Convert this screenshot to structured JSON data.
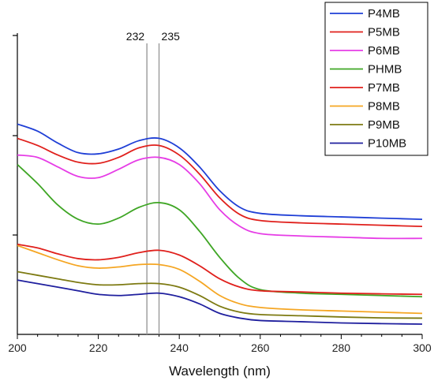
{
  "chart_data": {
    "type": "line",
    "title": "",
    "xlabel": "Wavelength (nm)",
    "ylabel": "",
    "xlim": [
      200,
      300
    ],
    "ylim": [
      0,
      1
    ],
    "x_ticks": [
      200,
      220,
      240,
      260,
      280,
      300
    ],
    "grid": false,
    "legend_position": "top-right",
    "annotations": [
      {
        "x": 232,
        "label": "232"
      },
      {
        "x": 235,
        "label": "235"
      }
    ],
    "series": [
      {
        "name": "P4MB",
        "color": "#1f3fd6",
        "points": [
          [
            200,
            0.85
          ],
          [
            205,
            0.82
          ],
          [
            210,
            0.77
          ],
          [
            215,
            0.73
          ],
          [
            220,
            0.725
          ],
          [
            225,
            0.745
          ],
          [
            230,
            0.78
          ],
          [
            235,
            0.79
          ],
          [
            240,
            0.75
          ],
          [
            245,
            0.67
          ],
          [
            250,
            0.57
          ],
          [
            255,
            0.5
          ],
          [
            260,
            0.475
          ],
          [
            270,
            0.465
          ],
          [
            280,
            0.46
          ],
          [
            290,
            0.455
          ],
          [
            300,
            0.45
          ]
        ]
      },
      {
        "name": "P5MB",
        "color": "#e0201c",
        "points": [
          [
            200,
            0.79
          ],
          [
            205,
            0.76
          ],
          [
            210,
            0.72
          ],
          [
            215,
            0.69
          ],
          [
            220,
            0.685
          ],
          [
            225,
            0.71
          ],
          [
            230,
            0.75
          ],
          [
            235,
            0.76
          ],
          [
            240,
            0.72
          ],
          [
            245,
            0.64
          ],
          [
            250,
            0.54
          ],
          [
            255,
            0.47
          ],
          [
            260,
            0.445
          ],
          [
            270,
            0.435
          ],
          [
            280,
            0.43
          ],
          [
            290,
            0.425
          ],
          [
            300,
            0.42
          ]
        ]
      },
      {
        "name": "P6MB",
        "color": "#e63de6",
        "points": [
          [
            200,
            0.72
          ],
          [
            205,
            0.71
          ],
          [
            210,
            0.67
          ],
          [
            215,
            0.63
          ],
          [
            220,
            0.625
          ],
          [
            225,
            0.66
          ],
          [
            230,
            0.7
          ],
          [
            235,
            0.71
          ],
          [
            240,
            0.68
          ],
          [
            245,
            0.6
          ],
          [
            250,
            0.49
          ],
          [
            255,
            0.42
          ],
          [
            260,
            0.39
          ],
          [
            270,
            0.38
          ],
          [
            280,
            0.375
          ],
          [
            290,
            0.37
          ],
          [
            300,
            0.37
          ]
        ]
      },
      {
        "name": "PHMB",
        "color": "#3fa625",
        "points": [
          [
            200,
            0.68
          ],
          [
            205,
            0.6
          ],
          [
            210,
            0.51
          ],
          [
            215,
            0.45
          ],
          [
            220,
            0.43
          ],
          [
            225,
            0.455
          ],
          [
            230,
            0.5
          ],
          [
            235,
            0.52
          ],
          [
            240,
            0.49
          ],
          [
            245,
            0.4
          ],
          [
            250,
            0.29
          ],
          [
            255,
            0.2
          ],
          [
            260,
            0.155
          ],
          [
            270,
            0.14
          ],
          [
            280,
            0.135
          ],
          [
            290,
            0.13
          ],
          [
            300,
            0.125
          ]
        ]
      },
      {
        "name": "P7MB",
        "color": "#e0201c",
        "points": [
          [
            200,
            0.345
          ],
          [
            205,
            0.33
          ],
          [
            210,
            0.305
          ],
          [
            215,
            0.285
          ],
          [
            220,
            0.28
          ],
          [
            225,
            0.29
          ],
          [
            230,
            0.31
          ],
          [
            235,
            0.32
          ],
          [
            240,
            0.3
          ],
          [
            245,
            0.255
          ],
          [
            250,
            0.2
          ],
          [
            255,
            0.165
          ],
          [
            260,
            0.15
          ],
          [
            270,
            0.145
          ],
          [
            280,
            0.14
          ],
          [
            290,
            0.137
          ],
          [
            300,
            0.135
          ]
        ]
      },
      {
        "name": "P8MB",
        "color": "#f5a623",
        "points": [
          [
            200,
            0.34
          ],
          [
            205,
            0.31
          ],
          [
            210,
            0.28
          ],
          [
            215,
            0.255
          ],
          [
            220,
            0.245
          ],
          [
            225,
            0.25
          ],
          [
            230,
            0.26
          ],
          [
            235,
            0.26
          ],
          [
            240,
            0.24
          ],
          [
            245,
            0.19
          ],
          [
            250,
            0.13
          ],
          [
            255,
            0.095
          ],
          [
            260,
            0.08
          ],
          [
            270,
            0.07
          ],
          [
            280,
            0.065
          ],
          [
            290,
            0.06
          ],
          [
            300,
            0.055
          ]
        ]
      },
      {
        "name": "P9MB",
        "color": "#7d7a12",
        "points": [
          [
            200,
            0.23
          ],
          [
            205,
            0.215
          ],
          [
            210,
            0.2
          ],
          [
            215,
            0.185
          ],
          [
            220,
            0.175
          ],
          [
            225,
            0.175
          ],
          [
            230,
            0.18
          ],
          [
            235,
            0.18
          ],
          [
            240,
            0.165
          ],
          [
            245,
            0.13
          ],
          [
            250,
            0.085
          ],
          [
            255,
            0.06
          ],
          [
            260,
            0.05
          ],
          [
            270,
            0.045
          ],
          [
            280,
            0.04
          ],
          [
            290,
            0.036
          ],
          [
            300,
            0.035
          ]
        ]
      },
      {
        "name": "P10MB",
        "color": "#1f1f9e",
        "points": [
          [
            200,
            0.195
          ],
          [
            205,
            0.18
          ],
          [
            210,
            0.165
          ],
          [
            215,
            0.15
          ],
          [
            220,
            0.135
          ],
          [
            225,
            0.13
          ],
          [
            230,
            0.135
          ],
          [
            235,
            0.14
          ],
          [
            240,
            0.125
          ],
          [
            245,
            0.095
          ],
          [
            250,
            0.055
          ],
          [
            255,
            0.035
          ],
          [
            260,
            0.025
          ],
          [
            270,
            0.02
          ],
          [
            280,
            0.015
          ],
          [
            290,
            0.012
          ],
          [
            300,
            0.01
          ]
        ]
      }
    ]
  }
}
